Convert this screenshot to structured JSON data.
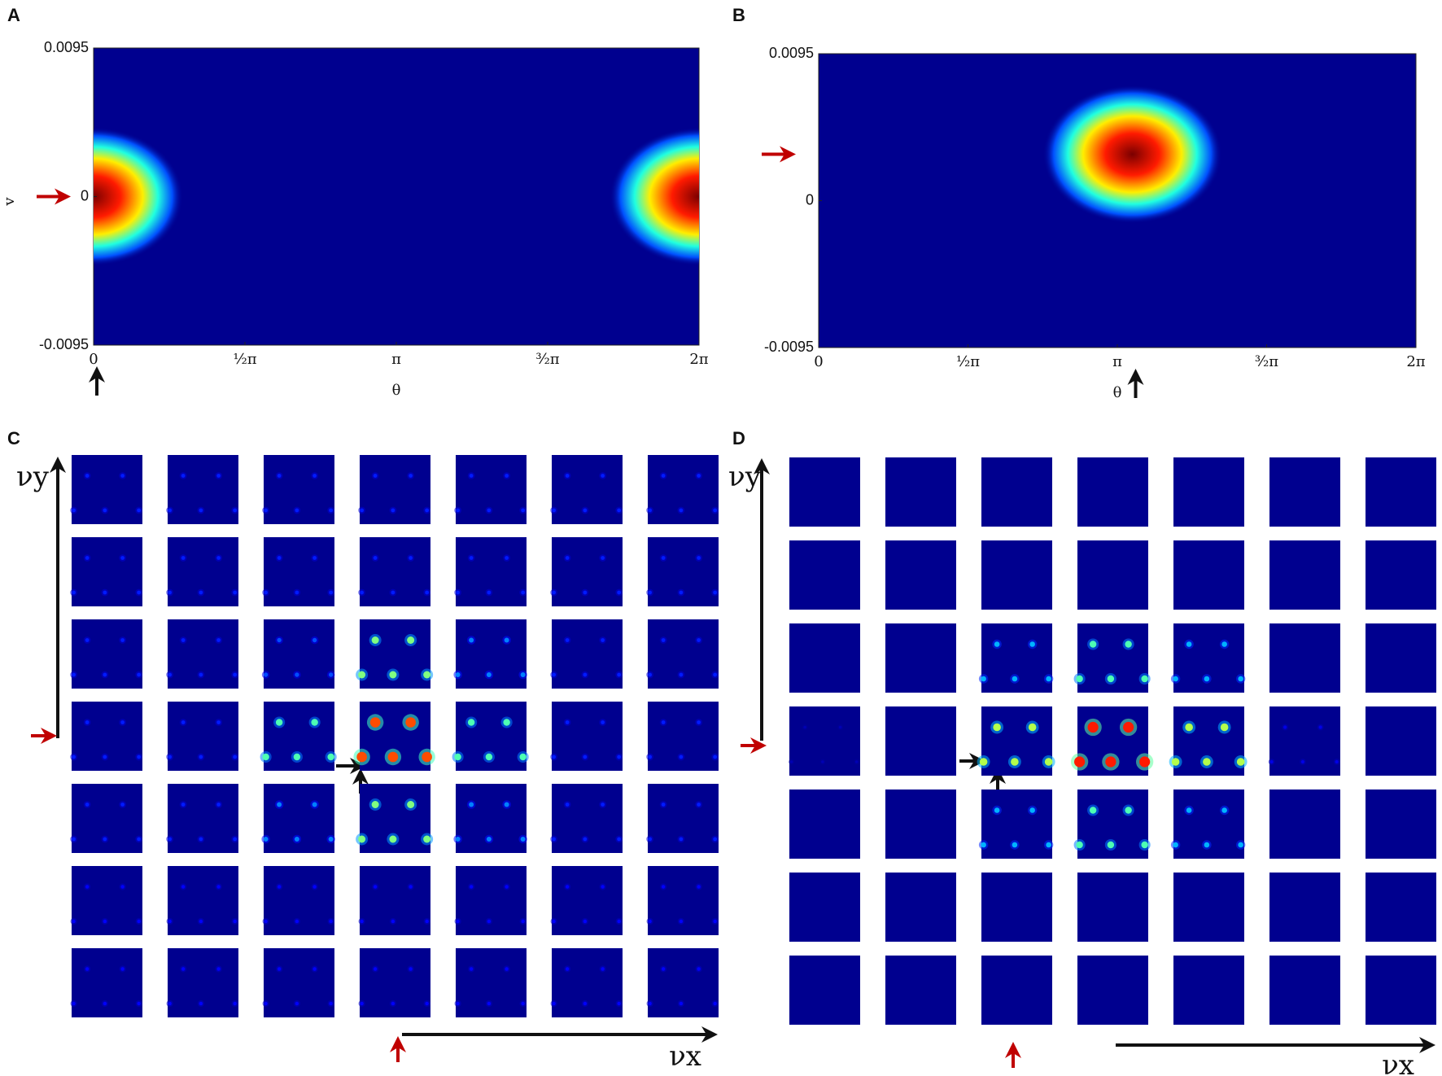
{
  "chart_data": [
    {
      "type": "heatmap",
      "panel": "A",
      "ylabel": "v",
      "xlabel": "θ",
      "xlim": [
        0,
        6.28319
      ],
      "ylim": [
        -0.0095,
        0.0095
      ],
      "xticks": [
        0,
        {
          "value": 1.5708,
          "label": "½π"
        },
        {
          "value": 3.14159,
          "label": "π"
        },
        {
          "value": 4.71239,
          "label": "³⁄₂π"
        },
        {
          "value": 6.28319,
          "label": "2π"
        }
      ],
      "yticks": [
        -0.0095,
        0,
        0.0095
      ],
      "peak": {
        "x": 0,
        "y": 0
      }
    },
    {
      "type": "heatmap",
      "panel": "B",
      "xlabel": "θ",
      "xlim": [
        0,
        6.28319
      ],
      "ylim": [
        -0.0095,
        0.0095
      ],
      "xticks": [
        0,
        {
          "value": 1.5708,
          "label": "½π"
        },
        {
          "value": 3.14159,
          "label": "π"
        },
        {
          "value": 4.71239,
          "label": "³⁄₂π"
        },
        {
          "value": 6.28319,
          "label": "2π"
        }
      ],
      "yticks": [
        -0.0095,
        0,
        0.0095
      ],
      "peak": {
        "x": 3.3,
        "y": 0.003
      }
    },
    {
      "type": "grid",
      "panel": "C",
      "ylabel": "νy",
      "xlabel": "νx",
      "intensity": [
        [
          0.15,
          0.15,
          0.15,
          0.15,
          0.15,
          0.15,
          0.15
        ],
        [
          0.15,
          0.15,
          0.15,
          0.15,
          0.15,
          0.15,
          0.15
        ],
        [
          0.15,
          0.15,
          0.2,
          0.5,
          0.25,
          0.15,
          0.15
        ],
        [
          0.15,
          0.15,
          0.45,
          0.8,
          0.45,
          0.15,
          0.15
        ],
        [
          0.15,
          0.15,
          0.25,
          0.5,
          0.25,
          0.15,
          0.15
        ],
        [
          0.12,
          0.12,
          0.12,
          0.12,
          0.12,
          0.12,
          0.12
        ],
        [
          0.12,
          0.12,
          0.12,
          0.12,
          0.12,
          0.12,
          0.12
        ]
      ]
    },
    {
      "type": "grid",
      "panel": "D",
      "ylabel": "νy",
      "xlabel": "νx",
      "intensity": [
        [
          0,
          0,
          0,
          0,
          0,
          0,
          0
        ],
        [
          0,
          0,
          0,
          0,
          0,
          0,
          0
        ],
        [
          0,
          0,
          0.3,
          0.45,
          0.3,
          0,
          0
        ],
        [
          0.05,
          0,
          0.55,
          0.85,
          0.55,
          0.1,
          0
        ],
        [
          0,
          0,
          0.3,
          0.45,
          0.3,
          0,
          0
        ],
        [
          0,
          0,
          0,
          0,
          0,
          0,
          0
        ],
        [
          0,
          0,
          0,
          0,
          0,
          0,
          0
        ]
      ]
    }
  ]
}
